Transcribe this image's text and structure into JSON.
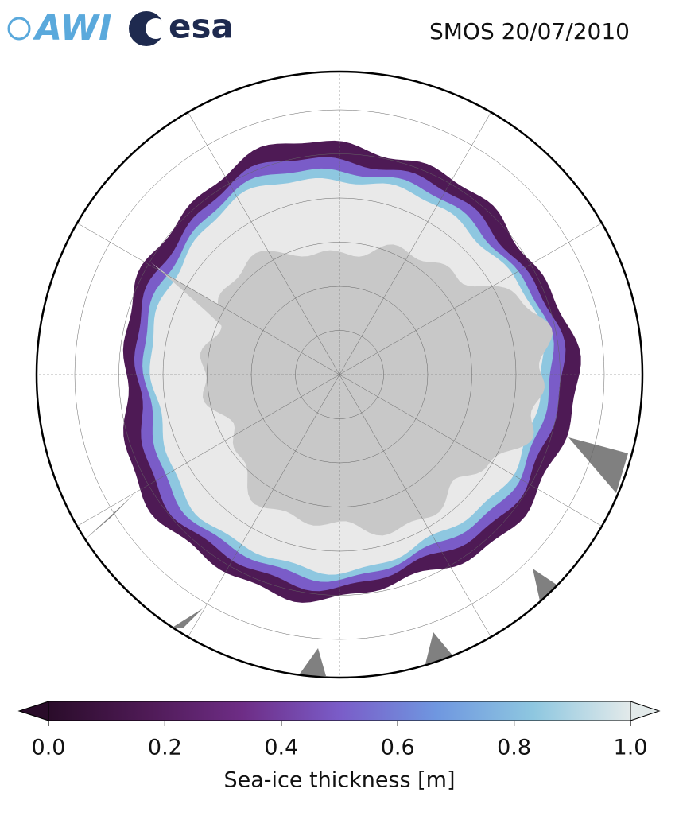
{
  "header": {
    "logos": [
      "AWI",
      "esa"
    ],
    "title": "SMOS 20/07/2010"
  },
  "colorbar": {
    "label": "Sea-ice thickness [m]",
    "lim": [
      0,
      1
    ],
    "ticks": [
      {
        "value": 0,
        "label": "0.0"
      },
      0.2,
      0.4,
      0.6,
      0.8,
      {
        "value": 1,
        "label": "1.0"
      }
    ],
    "colors": [
      "#2a0c2a",
      "#4e1a55",
      "#6e2d86",
      "#7a5cc8",
      "#6f97e0",
      "#8ec7e0",
      "#e3eaea"
    ]
  }
}
